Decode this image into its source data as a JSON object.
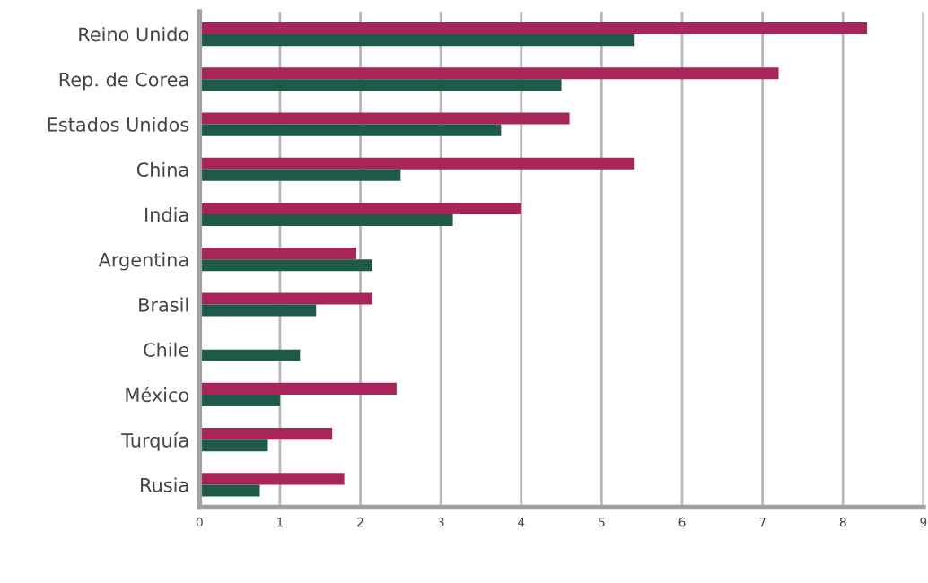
{
  "chart_data": {
    "type": "bar",
    "orientation": "horizontal",
    "categories": [
      "Reino Unido",
      "Rep. de Corea",
      "Estados Unidos",
      "China",
      "India",
      "Argentina",
      "Brasil",
      "Chile",
      "México",
      "Turquía",
      "Rusia"
    ],
    "series": [
      {
        "color": "#a8255a",
        "values": [
          8.3,
          7.2,
          4.6,
          5.4,
          4.0,
          1.95,
          2.15,
          null,
          2.45,
          1.65,
          1.8
        ]
      },
      {
        "color": "#1d5a47",
        "values": [
          5.4,
          4.5,
          3.75,
          2.5,
          3.15,
          2.15,
          1.45,
          1.25,
          1.0,
          0.85,
          0.75
        ]
      }
    ],
    "xlim": [
      0,
      9
    ],
    "xticks": [
      0,
      1,
      2,
      3,
      4,
      5,
      6,
      7,
      8,
      9
    ],
    "grid": "x"
  }
}
